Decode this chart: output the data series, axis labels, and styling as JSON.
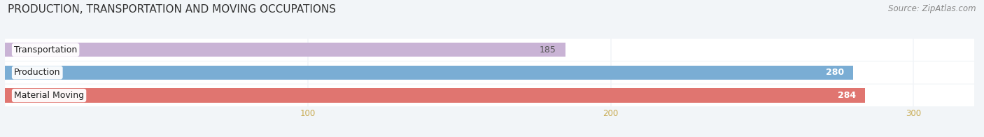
{
  "title": "PRODUCTION, TRANSPORTATION AND MOVING OCCUPATIONS",
  "source": "Source: ZipAtlas.com",
  "categories": [
    "Material Moving",
    "Production",
    "Transportation"
  ],
  "values": [
    284,
    280,
    185
  ],
  "bar_colors": [
    "#e07570",
    "#7aadd4",
    "#c9b3d5"
  ],
  "background_color": "#f2f5f8",
  "row_bg_color": "#ffffff",
  "row_separator_color": "#d8dde3",
  "xlim": [
    0,
    320
  ],
  "xticks": [
    100,
    200,
    300
  ],
  "bar_height": 0.62,
  "label_fontsize": 9.0,
  "value_fontsize": 9.0,
  "title_fontsize": 11.0,
  "source_fontsize": 8.5,
  "tick_color": "#c8aa50"
}
